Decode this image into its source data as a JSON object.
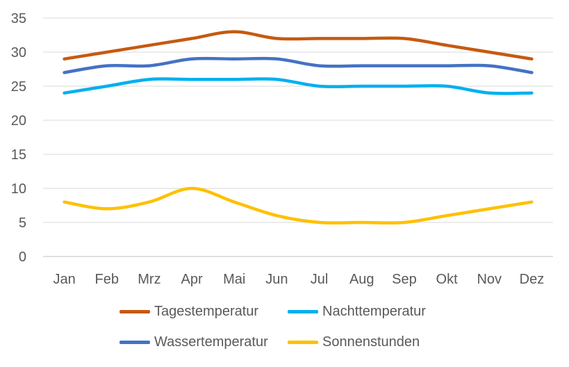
{
  "chart_data": {
    "type": "line",
    "title": "",
    "xlabel": "",
    "ylabel": "",
    "categories": [
      "Jan",
      "Feb",
      "Mrz",
      "Apr",
      "Mai",
      "Jun",
      "Jul",
      "Aug",
      "Sep",
      "Okt",
      "Nov",
      "Dez"
    ],
    "ylim": [
      0,
      35
    ],
    "yticks": [
      0,
      5,
      10,
      15,
      20,
      25,
      30,
      35
    ],
    "grid": true,
    "smooth": true,
    "legend_position": "bottom",
    "series": [
      {
        "name": "Tagestemperatur",
        "color": "#C55A11",
        "values": [
          29,
          30,
          31,
          32,
          33,
          32,
          32,
          32,
          32,
          31,
          30,
          29
        ]
      },
      {
        "name": "Nachttemperatur",
        "color": "#00B0F0",
        "values": [
          24,
          25,
          26,
          26,
          26,
          26,
          25,
          25,
          25,
          25,
          24,
          24
        ]
      },
      {
        "name": "Wassertemperatur",
        "color": "#4472C4",
        "values": [
          27,
          28,
          28,
          29,
          29,
          29,
          28,
          28,
          28,
          28,
          28,
          27
        ]
      },
      {
        "name": "Sonnenstunden",
        "color": "#FFC000",
        "values": [
          8,
          7,
          8,
          10,
          8,
          6,
          5,
          5,
          5,
          6,
          7,
          8
        ]
      }
    ]
  }
}
